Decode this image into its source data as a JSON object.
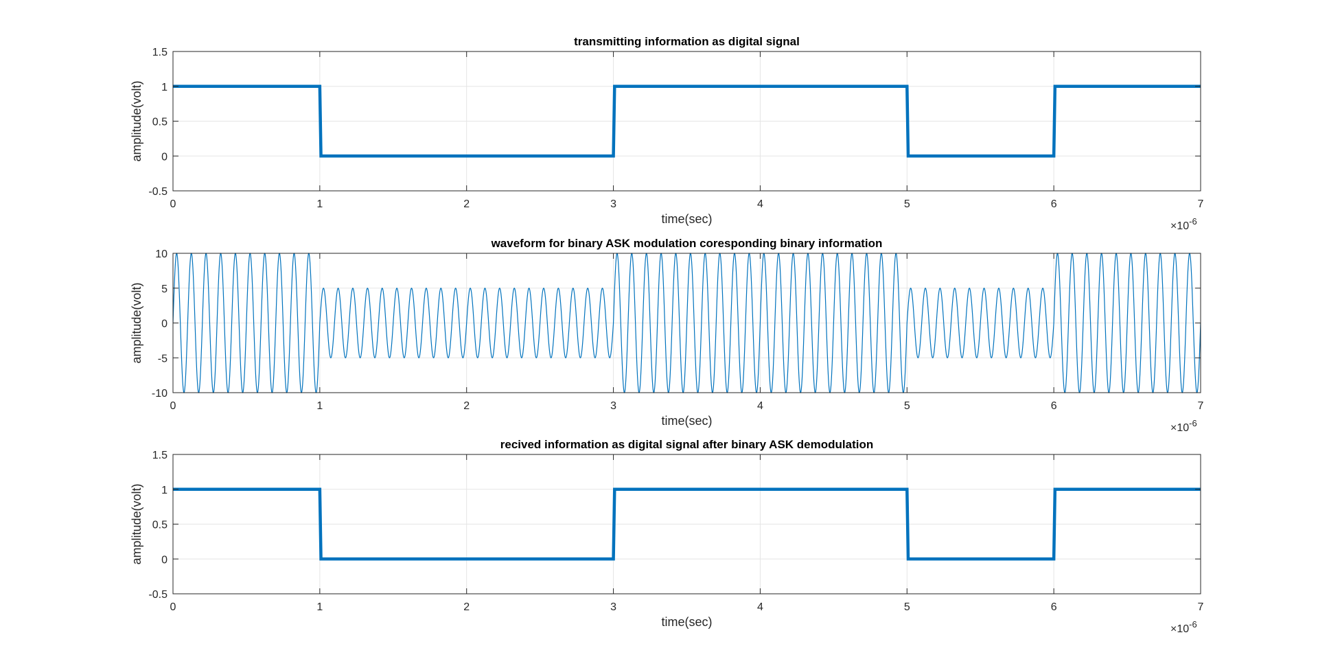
{
  "chart_data": [
    {
      "type": "line",
      "title": "transmitting information as digital signal",
      "xlabel": "time(sec)",
      "ylabel": "amplitude(volt)",
      "x_exponent_label": "×10",
      "x_exponent_power": "-6",
      "xlim": [
        0,
        7
      ],
      "ylim": [
        -0.5,
        1.5
      ],
      "xticks": [
        "0",
        "1",
        "2",
        "3",
        "4",
        "5",
        "6",
        "7"
      ],
      "yticks": [
        "-0.5",
        "0",
        "0.5",
        "1",
        "1.5"
      ],
      "grid": true,
      "x_units": "microseconds (axis scaled ×10^-6)",
      "bits": [
        1,
        0,
        0,
        1,
        1,
        0,
        1
      ],
      "series": [
        {
          "color": "#0072BD",
          "style": "step",
          "x": [
            0,
            1,
            1,
            3,
            3,
            5,
            5,
            6,
            6,
            7
          ],
          "y": [
            1,
            1,
            0,
            0,
            1,
            1,
            0,
            0,
            1,
            1
          ]
        }
      ]
    },
    {
      "type": "line",
      "title": "waveform for binary ASK modulation coresponding binary information",
      "xlabel": "time(sec)",
      "ylabel": "amplitude(volt)",
      "x_exponent_label": "×10",
      "x_exponent_power": "-6",
      "xlim": [
        0,
        7
      ],
      "ylim": [
        -10,
        10
      ],
      "xticks": [
        "0",
        "1",
        "2",
        "3",
        "4",
        "5",
        "6",
        "7"
      ],
      "yticks": [
        "-10",
        "-5",
        "0",
        "5",
        "10"
      ],
      "grid": true,
      "bits": [
        1,
        0,
        0,
        1,
        1,
        0,
        1
      ],
      "carrier_cycles_per_bit": 10,
      "amplitude_bit1": 10,
      "amplitude_bit0": 5,
      "series": [
        {
          "color": "#0072BD",
          "style": "sine"
        }
      ]
    },
    {
      "type": "line",
      "title": "recived information as digital signal after binary ASK demodulation",
      "xlabel": "time(sec)",
      "ylabel": "amplitude(volt)",
      "x_exponent_label": "×10",
      "x_exponent_power": "-6",
      "xlim": [
        0,
        7
      ],
      "ylim": [
        -0.5,
        1.5
      ],
      "xticks": [
        "0",
        "1",
        "2",
        "3",
        "4",
        "5",
        "6",
        "7"
      ],
      "yticks": [
        "-0.5",
        "0",
        "0.5",
        "1",
        "1.5"
      ],
      "grid": true,
      "bits": [
        1,
        0,
        0,
        1,
        1,
        0,
        1
      ],
      "series": [
        {
          "color": "#0072BD",
          "style": "step",
          "x": [
            0,
            1,
            1,
            3,
            3,
            5,
            5,
            6,
            6,
            7
          ],
          "y": [
            1,
            1,
            0,
            0,
            1,
            1,
            0,
            0,
            1,
            1
          ]
        }
      ]
    }
  ]
}
